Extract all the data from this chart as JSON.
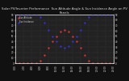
{
  "title": "Solar PV/Inverter Performance  Sun Altitude Angle & Sun Incidence Angle on PV Panels",
  "title_fontsize": 2.8,
  "x_values": [
    0,
    1,
    2,
    3,
    4,
    5,
    6,
    7,
    8,
    9,
    10,
    11,
    12,
    13,
    14,
    15,
    16,
    17,
    18,
    19,
    20,
    21,
    22,
    23,
    24
  ],
  "sun_altitude": [
    0,
    0,
    0,
    0,
    0,
    0,
    5,
    15,
    28,
    40,
    50,
    58,
    61,
    58,
    50,
    40,
    28,
    15,
    5,
    0,
    0,
    0,
    0,
    0,
    0
  ],
  "incidence_angle": [
    90,
    90,
    90,
    90,
    90,
    90,
    85,
    75,
    62,
    50,
    40,
    32,
    29,
    32,
    40,
    50,
    62,
    75,
    85,
    90,
    90,
    90,
    90,
    90,
    90
  ],
  "altitude_color": "#ff3333",
  "incidence_color": "#3333ff",
  "background_color": "#111111",
  "plot_bg_color": "#222222",
  "grid_color": "#555555",
  "text_color": "#dddddd",
  "ylim_left": [
    0,
    90
  ],
  "ylim_right": [
    0,
    90
  ],
  "xlim": [
    0,
    24
  ],
  "xtick_labels": [
    "0:00",
    "2:00",
    "4:00",
    "6:00",
    "8:00",
    "10:00",
    "12:00",
    "14:00",
    "16:00",
    "18:00",
    "20:00",
    "22:00",
    "24:00"
  ],
  "xtick_positions": [
    0,
    2,
    4,
    6,
    8,
    10,
    12,
    14,
    16,
    18,
    20,
    22,
    24
  ],
  "ytick_left": [
    0,
    10,
    20,
    30,
    40,
    50,
    60,
    70,
    80,
    90
  ],
  "ytick_right": [
    0,
    10,
    20,
    30,
    40,
    50,
    60,
    70,
    80,
    90
  ],
  "legend_altitude": "Sun Altitude",
  "legend_incidence": "Sun Incidence",
  "marker_size": 1.2,
  "linewidth": 0.0
}
